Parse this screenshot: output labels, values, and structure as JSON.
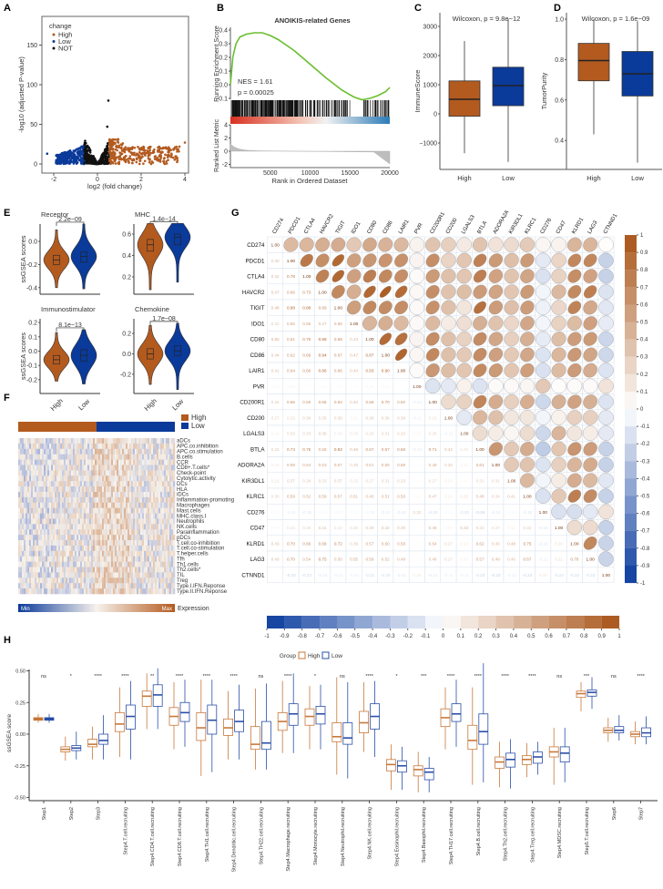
{
  "panel_labels": [
    "A",
    "B",
    "C",
    "D",
    "E",
    "F",
    "G",
    "H"
  ],
  "colors": {
    "high": "#B35A1F",
    "low": "#0A3A9A",
    "not": "#111111",
    "h_high_outline": "#C8783A",
    "h_low_outline": "#2A4FA8",
    "es_curve": "#6BBE2E"
  },
  "chart_data": [
    {
      "id": "A",
      "type": "scatter",
      "xlabel": "log2 (fold change)",
      "ylabel": "-log10 (adjusted P-value)",
      "xlim": [
        -2.6,
        4.2
      ],
      "ylim": [
        -5,
        185
      ],
      "xticks": [
        "-2",
        "0",
        "2",
        "4"
      ],
      "xtick_values": [
        -2,
        0,
        2,
        4
      ],
      "yticks": [
        "0",
        "50",
        "100",
        "150"
      ],
      "ytick_values": [
        0,
        50,
        100,
        150
      ],
      "legend": {
        "title": "change",
        "items": [
          "High",
          "Low",
          "NOT"
        ],
        "placement": "top-left"
      }
    },
    {
      "id": "B",
      "type": "line",
      "title": "ANOIKIS-related Genes",
      "ylabel_top": "Running Enrichment Score",
      "ylabel_bottom": "Ranked List Metric",
      "xlabel": "Rank in Ordered Dataset",
      "annotation_nes": "NES = 1.61",
      "annotation_p": "p = 0.00025",
      "xticks": [
        "5000",
        "10000",
        "15000",
        "20000"
      ],
      "xtick_values": [
        5000,
        10000,
        15000,
        20000
      ],
      "es_yticks": [
        "0.4",
        "0.3",
        "0.2",
        "0.1",
        "0.0",
        "-0.1"
      ],
      "es_ytick_values": [
        0.4,
        0.3,
        0.2,
        0.1,
        0.0,
        -0.1
      ],
      "metric_yticks": [
        "4",
        "2",
        "0",
        "-2"
      ],
      "metric_ytick_values": [
        4,
        2,
        0,
        -2
      ],
      "x": [
        0,
        300,
        700,
        1200,
        2000,
        3000,
        4000,
        5000,
        6000,
        8000,
        10000,
        12000,
        14000,
        15500,
        16500,
        17500,
        18500,
        19500,
        20000
      ],
      "es": [
        0,
        0.2,
        0.3,
        0.35,
        0.37,
        0.38,
        0.38,
        0.36,
        0.33,
        0.25,
        0.15,
        0.05,
        -0.04,
        -0.09,
        -0.11,
        -0.1,
        -0.08,
        -0.05,
        -0.02
      ]
    },
    {
      "id": "C",
      "type": "box",
      "title": "Wilcoxon, p = 9.8e−12",
      "ylabel": "ImmuneScore",
      "categories": [
        "High",
        "Low"
      ],
      "yticks": [
        "3000",
        "2000",
        "1000",
        "0",
        "−1000"
      ],
      "ytick_values": [
        3000,
        2000,
        1000,
        0,
        -1000
      ],
      "stats": [
        [
          -1350,
          -80,
          500,
          1130,
          2500
        ],
        [
          -1650,
          280,
          970,
          1600,
          3250
        ]
      ]
    },
    {
      "id": "D",
      "type": "box",
      "title": "Wilcoxon, p = 1.6e−09",
      "ylabel": "TumorPurity",
      "categories": [
        "High",
        "Low"
      ],
      "yticks": [
        "1.0",
        "0.8",
        "0.6",
        "0.4"
      ],
      "ytick_values": [
        1.0,
        0.8,
        0.6,
        0.4
      ],
      "stats": [
        [
          0.43,
          0.695,
          0.795,
          0.88,
          1.0
        ],
        [
          0.29,
          0.62,
          0.73,
          0.84,
          0.99
        ]
      ]
    },
    {
      "id": "E",
      "type": "violin",
      "ylabel": "ssGSEA scores",
      "categories": [
        "High",
        "Low"
      ],
      "panels": [
        {
          "title": "Receptor",
          "pvalue": "2.2e−09",
          "yticks": [
            "0.0",
            "-0.2",
            "-0.4"
          ],
          "ytick_values": [
            0,
            -0.2,
            -0.4
          ],
          "stats": [
            [
              -0.4,
              -0.2,
              -0.16,
              -0.12,
              0.1
            ],
            [
              -0.41,
              -0.18,
              -0.13,
              -0.09,
              0.15
            ]
          ]
        },
        {
          "title": "MHC",
          "pvalue": "1.4e−14",
          "yticks": [
            "0.6",
            "0.4",
            "0.2"
          ],
          "ytick_values": [
            0.6,
            0.4,
            0.2
          ],
          "stats": [
            [
              0.08,
              0.44,
              0.5,
              0.55,
              0.7
            ],
            [
              0.15,
              0.5,
              0.57,
              0.6,
              0.7
            ]
          ]
        },
        {
          "title": "Immunostimulator",
          "pvalue": "8.1e−13",
          "yticks": [
            "0.2",
            "0.1",
            "0.0",
            "-0.1",
            "-0.2"
          ],
          "ytick_values": [
            0.2,
            0.1,
            0,
            -0.1,
            -0.2
          ],
          "stats": [
            [
              -0.21,
              -0.09,
              -0.06,
              -0.03,
              0.13
            ],
            [
              -0.23,
              -0.07,
              -0.03,
              0.01,
              0.15
            ]
          ]
        },
        {
          "title": "Chemokine",
          "pvalue": "1.7e−08",
          "yticks": [
            "0.2",
            "0.0",
            "-0.2"
          ],
          "ytick_values": [
            0.2,
            0,
            -0.2
          ],
          "stats": [
            [
              -0.3,
              -0.05,
              0.0,
              0.05,
              0.28
            ],
            [
              -0.35,
              -0.02,
              0.03,
              0.08,
              0.3
            ]
          ]
        }
      ]
    },
    {
      "id": "F",
      "type": "heatmap",
      "annotation_legend": [
        "High",
        "Low"
      ],
      "colorbar_min": "Min",
      "colorbar_max": "Max",
      "colorbar_label": "Expression",
      "rows": [
        "aDCs",
        "APC.co.inhibition",
        "APC.co.stimulation",
        "B.cells",
        "CCR",
        "CD8+.T.cells*",
        "Check-point",
        "Cytolytic.activity",
        "DCs",
        "HLA",
        "iDCs",
        "Inflammation-promoting",
        "Macrophages",
        "Mast.cells",
        "MHC.class.I",
        "Neutrophils",
        "NK.cells",
        "Parainflammation",
        "pDCs",
        "T.cell.co-inhibition",
        "T.cell.co-stimulation",
        "T.helper.cells",
        "Tfh",
        "Th1.cells",
        "Th2.cells*",
        "TIL",
        "Treg",
        "Type.I.IFN.Reponse",
        "Type.II.IFN.Reponse"
      ]
    },
    {
      "id": "G",
      "type": "heatmap",
      "genes": [
        "CD274",
        "PDCD1",
        "CTLA4",
        "HAVCR2",
        "TIGIT",
        "IDO1",
        "CD80",
        "CD86",
        "LAIR1",
        "PVR",
        "CD200R1",
        "CD200",
        "LGALS3",
        "BTLA",
        "ADORA2A",
        "KIR3DL1",
        "KLRC1",
        "CD276",
        "CD47",
        "KLRD1",
        "LAG3",
        "CTNND1"
      ],
      "diag_label": "1.00",
      "lower": [
        [],
        [
          0.4
        ],
        [
          0.42,
          0.78
        ],
        [
          0.47,
          0.66,
          0.73
        ],
        [
          0.48,
          0.88,
          0.88,
          0.69
        ],
        [
          0.32,
          0.55,
          0.55,
          0.47,
          0.56
        ],
        [
          0.5,
          0.61,
          0.75,
          0.88,
          0.69,
          0.43
        ],
        [
          0.44,
          0.62,
          0.69,
          0.94,
          0.67,
          0.47,
          0.87
        ],
        [
          0.41,
          0.64,
          0.66,
          0.86,
          0.66,
          0.4,
          0.83,
          0.9
        ],
        [
          0.07,
          0.06,
          0.02,
          0.04,
          0.03,
          0.03,
          0.06,
          0.05,
          0.02
        ],
        [
          0.34,
          0.66,
          0.59,
          0.66,
          0.64,
          0.4,
          0.66,
          0.7,
          0.6,
          -0.14
        ],
        [
          0.27,
          0.25,
          0.36,
          0.35,
          0.36,
          0.11,
          0.36,
          0.36,
          0.38,
          -0.11,
          0.21
        ],
        [
          0.12,
          0.33,
          0.33,
          0.38,
          0.15,
          0.19,
          0.26,
          0.31,
          0.33,
          0.08,
          0.26,
          -0.11
        ],
        [
          0.34,
          0.73,
          0.75,
          0.58,
          0.83,
          0.46,
          0.67,
          0.67,
          0.68,
          -0.14,
          0.71,
          0.42,
          0.2
        ],
        [
          0.16,
          0.59,
          0.54,
          0.53,
          0.57,
          0.35,
          0.51,
          0.55,
          0.59,
          0.02,
          0.48,
          0.36,
          0.11,
          0.61
        ],
        [
          0.21,
          0.37,
          0.34,
          0.33,
          0.37,
          0.23,
          0.27,
          0.31,
          0.33,
          0.03,
          0.27,
          0.14,
          0.05,
          0.31,
          0.31
        ],
        [
          0.3,
          0.59,
          0.52,
          0.59,
          0.57,
          0.51,
          0.46,
          0.51,
          0.56,
          0.05,
          0.47,
          0.14,
          0.2,
          0.48,
          0.34,
          0.41
        ],
        [
          0.05,
          -0.11,
          -0.15,
          -0.05,
          -0.07,
          -0.05,
          -0.1,
          -0.14,
          -0.15,
          0.32,
          -0.2,
          -0.05,
          -0.2,
          -0.26,
          -0.14,
          -0.05,
          -0.15
        ],
        [
          0.07,
          0.24,
          0.26,
          0.41,
          0.23,
          0.26,
          0.38,
          0.42,
          0.39,
          0.01,
          0.46,
          0.08,
          0.43,
          0.33,
          0.27,
          0.11,
          0.32,
          -0.15
        ],
        [
          0.43,
          0.7,
          0.66,
          0.68,
          0.72,
          0.39,
          0.57,
          0.6,
          0.58,
          0.02,
          0.54,
          0.27,
          0.14,
          0.62,
          0.43,
          0.48,
          0.75,
          -0.16,
          0.2
        ],
        [
          0.43,
          0.7,
          0.54,
          0.75,
          0.5,
          0.55,
          0.59,
          0.52,
          0.48,
          0.03,
          0.46,
          0.27,
          0.1,
          0.57,
          0.49,
          0.4,
          0.67,
          -0.11,
          0.21,
          0.7
        ],
        [
          0.01,
          -0.23,
          -0.23,
          -0.14,
          -0.12,
          -0.1,
          -0.21,
          -0.2,
          -0.14,
          0.16,
          -0.14,
          -0.11,
          -0.11,
          -0.23,
          -0.23,
          -0.12,
          -0.23,
          0.16,
          -0.23,
          -0.22,
          -0.22
        ]
      ],
      "colorbar_ticks": [
        "1",
        "0.9",
        "0.8",
        "0.7",
        "0.6",
        "0.5",
        "0.4",
        "0.3",
        "0.2",
        "0.1",
        "0",
        "-0.1",
        "-0.2",
        "-0.3",
        "-0.4",
        "-0.5",
        "-0.6",
        "-0.7",
        "-0.8",
        "-0.9",
        "-1"
      ],
      "colorbar_tick_values": [
        1,
        0.9,
        0.8,
        0.7,
        0.6,
        0.5,
        0.4,
        0.3,
        0.2,
        0.1,
        0,
        -0.1,
        -0.2,
        -0.3,
        -0.4,
        -0.5,
        -0.6,
        -0.7,
        -0.8,
        -0.9,
        -1
      ],
      "hbar_ticks": [
        "-1",
        "-0.9",
        "-0.8",
        "-0.7",
        "-0.6",
        "-0.5",
        "-0.4",
        "-0.3",
        "-0.2",
        "-0.1",
        "0",
        "0.1",
        "0.2",
        "0.3",
        "0.4",
        "0.5",
        "0.6",
        "0.7",
        "0.8",
        "0.9",
        "1"
      ]
    },
    {
      "id": "H",
      "type": "box",
      "legend_title": "Group",
      "legend_items": [
        "High",
        "Low"
      ],
      "ylabel": "ssGSEA score",
      "yticks": [
        "0.50",
        "0.25",
        "0.00",
        "-0.25",
        "-0.50"
      ],
      "ytick_values": [
        0.5,
        0.25,
        0,
        -0.25,
        -0.5
      ],
      "categories": [
        "Step1",
        "Step2",
        "Step3",
        "Step4.T.cell.recruiting",
        "Step4.CD4.T.cell.recruiting",
        "Step4.CD8.T.cell.recruiting",
        "Step4.TH1.cell.recruiting",
        "Step4.Dendritic.cell.recruiting",
        "Step4.TH22.cell.recruiting",
        "Step4.Macrophage.recruiting",
        "Step4.Monocyte.recruiting",
        "Step4.Neutrophil.recruiting",
        "Step4.NK.cell.recruiting",
        "Step4.Eosinophil.recruiting",
        "Step4.Basophil.recruiting",
        "Step4.TH17.cell.recruiting",
        "Step4.B.cell.recruiting",
        "Step4.Th2.cell.recruiting",
        "Step4.Treg.cell.recruiting",
        "Step4.MDSC.recruiting",
        "Step5.T.cell.recruiting",
        "Step6",
        "Step7"
      ],
      "significance": [
        "ns",
        "*",
        "****",
        "****",
        "**",
        "****",
        "****",
        "****",
        "ns",
        "****",
        "*",
        "ns",
        "****",
        "*",
        "***",
        "****",
        "****",
        "****",
        "****",
        "ns",
        "***",
        "ns",
        "****"
      ],
      "high": [
        [
          0.09,
          0.11,
          0.12,
          0.13,
          0.16
        ],
        [
          -0.21,
          -0.14,
          -0.12,
          -0.1,
          -0.02
        ],
        [
          -0.2,
          -0.1,
          -0.08,
          -0.04,
          0.06
        ],
        [
          -0.18,
          0.02,
          0.08,
          0.17,
          0.37
        ],
        [
          0.04,
          0.22,
          0.3,
          0.34,
          0.48
        ],
        [
          -0.12,
          0.07,
          0.14,
          0.21,
          0.41
        ],
        [
          -0.33,
          -0.05,
          0.05,
          0.17,
          0.43
        ],
        [
          -0.2,
          -0.01,
          0.05,
          0.12,
          0.34
        ],
        [
          -0.28,
          -0.12,
          -0.08,
          0.06,
          0.36
        ],
        [
          -0.15,
          0.03,
          0.1,
          0.17,
          0.42
        ],
        [
          -0.12,
          0.07,
          0.14,
          0.2,
          0.38
        ],
        [
          -0.32,
          -0.06,
          -0.02,
          0.09,
          0.45
        ],
        [
          -0.14,
          0.01,
          0.09,
          0.18,
          0.41
        ],
        [
          -0.44,
          -0.29,
          -0.24,
          -0.2,
          -0.08
        ],
        [
          -0.46,
          -0.33,
          -0.28,
          -0.25,
          -0.14
        ],
        [
          -0.12,
          0.06,
          0.13,
          0.2,
          0.37
        ],
        [
          -0.4,
          -0.12,
          -0.05,
          0.07,
          0.37
        ],
        [
          -0.42,
          -0.27,
          -0.22,
          -0.18,
          -0.06
        ],
        [
          -0.34,
          -0.24,
          -0.2,
          -0.17,
          -0.07
        ],
        [
          -0.4,
          -0.18,
          -0.14,
          -0.1,
          0.05
        ],
        [
          0.18,
          0.29,
          0.32,
          0.34,
          0.41
        ],
        [
          -0.06,
          0.01,
          0.03,
          0.05,
          0.13
        ],
        [
          -0.08,
          -0.02,
          0.0,
          0.02,
          0.1
        ]
      ],
      "low": [
        [
          0.09,
          0.11,
          0.12,
          0.13,
          0.16
        ],
        [
          -0.2,
          -0.13,
          -0.11,
          -0.09,
          0.02
        ],
        [
          -0.2,
          -0.08,
          -0.05,
          0.0,
          0.15
        ],
        [
          -0.2,
          0.04,
          0.14,
          0.23,
          0.42
        ],
        [
          0.04,
          0.22,
          0.31,
          0.39,
          0.52
        ],
        [
          -0.1,
          0.1,
          0.17,
          0.25,
          0.43
        ],
        [
          -0.3,
          0.0,
          0.11,
          0.23,
          0.43
        ],
        [
          -0.2,
          0.02,
          0.1,
          0.19,
          0.39
        ],
        [
          -0.28,
          -0.12,
          -0.07,
          0.1,
          0.4
        ],
        [
          -0.15,
          0.07,
          0.16,
          0.24,
          0.48
        ],
        [
          -0.12,
          0.08,
          0.16,
          0.22,
          0.39
        ],
        [
          -0.35,
          -0.08,
          -0.03,
          0.09,
          0.41
        ],
        [
          -0.18,
          0.04,
          0.14,
          0.24,
          0.42
        ],
        [
          -0.44,
          -0.3,
          -0.25,
          -0.21,
          -0.1
        ],
        [
          -0.46,
          -0.36,
          -0.3,
          -0.27,
          -0.18
        ],
        [
          -0.1,
          0.1,
          0.16,
          0.24,
          0.43
        ],
        [
          -0.38,
          -0.08,
          0.02,
          0.16,
          0.56
        ],
        [
          -0.43,
          -0.26,
          -0.2,
          -0.15,
          -0.04
        ],
        [
          -0.32,
          -0.23,
          -0.18,
          -0.14,
          -0.06
        ],
        [
          -0.38,
          -0.22,
          -0.15,
          -0.1,
          0.05
        ],
        [
          0.2,
          0.3,
          0.33,
          0.35,
          0.45
        ],
        [
          -0.05,
          0.01,
          0.03,
          0.06,
          0.15
        ],
        [
          -0.08,
          -0.02,
          0.01,
          0.05,
          0.14
        ]
      ]
    }
  ]
}
